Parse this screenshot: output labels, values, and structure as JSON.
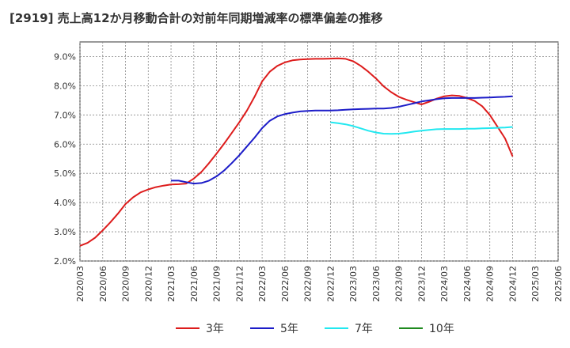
{
  "chart_data": {
    "type": "line",
    "title": "[2919]  売上高12か月移動合計の対前年同期増減率の標準偏差の推移",
    "xlabel": "",
    "ylabel": "",
    "ylim": [
      2.0,
      9.5
    ],
    "yticks": [
      "2.0%",
      "3.0%",
      "4.0%",
      "5.0%",
      "6.0%",
      "7.0%",
      "8.0%",
      "9.0%"
    ],
    "ytick_values": [
      2.0,
      3.0,
      4.0,
      5.0,
      6.0,
      7.0,
      8.0,
      9.0
    ],
    "xticks": [
      "2020/03",
      "2020/06",
      "2020/09",
      "2020/12",
      "2021/03",
      "2021/06",
      "2021/09",
      "2021/12",
      "2022/03",
      "2022/06",
      "2022/09",
      "2022/12",
      "2023/03",
      "2023/06",
      "2023/09",
      "2023/12",
      "2024/03",
      "2024/06",
      "2024/09",
      "2024/12",
      "2025/03",
      "2025/06"
    ],
    "grid": true,
    "legend_position": "bottom",
    "series": [
      {
        "name": "3年",
        "color": "#dd1c1c",
        "points": [
          [
            0,
            2.52
          ],
          [
            1,
            2.62
          ],
          [
            2,
            2.8
          ],
          [
            3,
            3.05
          ],
          [
            4,
            3.32
          ],
          [
            5,
            3.62
          ],
          [
            6,
            3.95
          ],
          [
            7,
            4.18
          ],
          [
            8,
            4.35
          ],
          [
            9,
            4.45
          ],
          [
            10,
            4.53
          ],
          [
            11,
            4.58
          ],
          [
            12,
            4.62
          ],
          [
            13,
            4.63
          ],
          [
            14,
            4.65
          ],
          [
            15,
            4.82
          ],
          [
            16,
            5.05
          ],
          [
            17,
            5.35
          ],
          [
            18,
            5.68
          ],
          [
            19,
            6.02
          ],
          [
            20,
            6.38
          ],
          [
            21,
            6.75
          ],
          [
            22,
            7.15
          ],
          [
            23,
            7.62
          ],
          [
            24,
            8.15
          ],
          [
            25,
            8.48
          ],
          [
            26,
            8.68
          ],
          [
            27,
            8.8
          ],
          [
            28,
            8.87
          ],
          [
            29,
            8.9
          ],
          [
            30,
            8.91
          ],
          [
            31,
            8.92
          ],
          [
            32,
            8.92
          ],
          [
            33,
            8.93
          ],
          [
            34,
            8.94
          ],
          [
            35,
            8.92
          ],
          [
            36,
            8.84
          ],
          [
            37,
            8.68
          ],
          [
            38,
            8.48
          ],
          [
            39,
            8.25
          ],
          [
            40,
            7.98
          ],
          [
            41,
            7.78
          ],
          [
            42,
            7.62
          ],
          [
            43,
            7.52
          ],
          [
            44,
            7.44
          ],
          [
            45,
            7.36
          ],
          [
            46,
            7.45
          ],
          [
            47,
            7.56
          ],
          [
            48,
            7.64
          ],
          [
            49,
            7.67
          ],
          [
            50,
            7.65
          ],
          [
            51,
            7.58
          ],
          [
            52,
            7.48
          ],
          [
            53,
            7.3
          ],
          [
            54,
            7.0
          ],
          [
            55,
            6.6
          ],
          [
            56,
            6.2
          ],
          [
            57,
            5.58
          ]
        ]
      },
      {
        "name": "5年",
        "color": "#1c1cc8",
        "points": [
          [
            12,
            4.75
          ],
          [
            13,
            4.75
          ],
          [
            14,
            4.7
          ],
          [
            15,
            4.65
          ],
          [
            16,
            4.67
          ],
          [
            17,
            4.75
          ],
          [
            18,
            4.9
          ],
          [
            19,
            5.1
          ],
          [
            20,
            5.35
          ],
          [
            21,
            5.62
          ],
          [
            22,
            5.92
          ],
          [
            23,
            6.22
          ],
          [
            24,
            6.55
          ],
          [
            25,
            6.8
          ],
          [
            26,
            6.95
          ],
          [
            27,
            7.03
          ],
          [
            28,
            7.08
          ],
          [
            29,
            7.12
          ],
          [
            30,
            7.14
          ],
          [
            31,
            7.15
          ],
          [
            32,
            7.15
          ],
          [
            33,
            7.15
          ],
          [
            34,
            7.16
          ],
          [
            35,
            7.18
          ],
          [
            36,
            7.19
          ],
          [
            37,
            7.2
          ],
          [
            38,
            7.21
          ],
          [
            39,
            7.22
          ],
          [
            40,
            7.22
          ],
          [
            41,
            7.24
          ],
          [
            42,
            7.28
          ],
          [
            43,
            7.34
          ],
          [
            44,
            7.4
          ],
          [
            45,
            7.46
          ],
          [
            46,
            7.5
          ],
          [
            47,
            7.54
          ],
          [
            48,
            7.57
          ],
          [
            49,
            7.58
          ],
          [
            50,
            7.58
          ],
          [
            51,
            7.58
          ],
          [
            52,
            7.58
          ],
          [
            53,
            7.59
          ],
          [
            54,
            7.6
          ],
          [
            55,
            7.61
          ],
          [
            56,
            7.62
          ],
          [
            57,
            7.64
          ]
        ]
      },
      {
        "name": "7年",
        "color": "#22e8f0",
        "points": [
          [
            33,
            6.75
          ],
          [
            34,
            6.72
          ],
          [
            35,
            6.68
          ],
          [
            36,
            6.62
          ],
          [
            37,
            6.54
          ],
          [
            38,
            6.46
          ],
          [
            39,
            6.4
          ],
          [
            40,
            6.36
          ],
          [
            41,
            6.35
          ],
          [
            42,
            6.36
          ],
          [
            43,
            6.39
          ],
          [
            44,
            6.43
          ],
          [
            45,
            6.46
          ],
          [
            46,
            6.49
          ],
          [
            47,
            6.51
          ],
          [
            48,
            6.52
          ],
          [
            49,
            6.52
          ],
          [
            50,
            6.52
          ],
          [
            51,
            6.53
          ],
          [
            52,
            6.53
          ],
          [
            53,
            6.54
          ],
          [
            54,
            6.55
          ],
          [
            55,
            6.56
          ],
          [
            56,
            6.57
          ],
          [
            57,
            6.59
          ]
        ]
      },
      {
        "name": "10年",
        "color": "#1f8a1f",
        "points": []
      }
    ]
  }
}
